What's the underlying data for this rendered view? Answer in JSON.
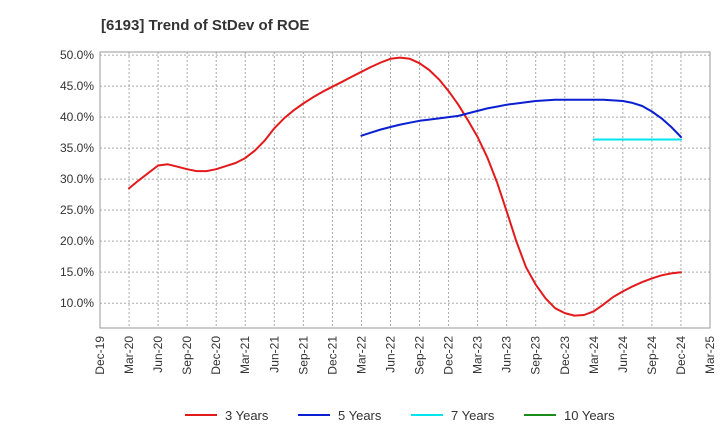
{
  "chart_data": {
    "type": "line",
    "title": "[6193]  Trend of StDev of ROE",
    "xlabel": "",
    "ylabel": "",
    "x_ticks": [
      "Dec-19",
      "Mar-20",
      "Jun-20",
      "Sep-20",
      "Dec-20",
      "Mar-21",
      "Jun-21",
      "Sep-21",
      "Dec-21",
      "Mar-22",
      "Jun-22",
      "Sep-22",
      "Dec-22",
      "Mar-23",
      "Jun-23",
      "Sep-23",
      "Dec-23",
      "Mar-24",
      "Jun-24",
      "Sep-24",
      "Dec-24",
      "Mar-25"
    ],
    "y_ticks": [
      "10.0%",
      "15.0%",
      "20.0%",
      "25.0%",
      "30.0%",
      "35.0%",
      "40.0%",
      "45.0%",
      "50.0%"
    ],
    "ylim": [
      6.0,
      50.5
    ],
    "grid": true,
    "legend_position": "bottom",
    "series": [
      {
        "name": "3 Years",
        "color": "#e31a1c",
        "points": [
          [
            "Mar-20",
            28.5
          ],
          [
            "Apr-20",
            29.8
          ],
          [
            "May-20",
            31.0
          ],
          [
            "Jun-20",
            32.2
          ],
          [
            "Jul-20",
            32.4
          ],
          [
            "Aug-20",
            32.0
          ],
          [
            "Sep-20",
            31.6
          ],
          [
            "Oct-20",
            31.3
          ],
          [
            "Nov-20",
            31.3
          ],
          [
            "Dec-20",
            31.6
          ],
          [
            "Jan-21",
            32.1
          ],
          [
            "Feb-21",
            32.6
          ],
          [
            "Mar-21",
            33.4
          ],
          [
            "Apr-21",
            34.6
          ],
          [
            "May-21",
            36.2
          ],
          [
            "Jun-21",
            38.2
          ],
          [
            "Jul-21",
            39.8
          ],
          [
            "Aug-21",
            41.1
          ],
          [
            "Sep-21",
            42.2
          ],
          [
            "Oct-21",
            43.2
          ],
          [
            "Nov-21",
            44.1
          ],
          [
            "Dec-21",
            44.9
          ],
          [
            "Jan-22",
            45.7
          ],
          [
            "Feb-22",
            46.5
          ],
          [
            "Mar-22",
            47.3
          ],
          [
            "Apr-22",
            48.1
          ],
          [
            "May-22",
            48.8
          ],
          [
            "Jun-22",
            49.4
          ],
          [
            "Jul-22",
            49.6
          ],
          [
            "Aug-22",
            49.4
          ],
          [
            "Sep-22",
            48.7
          ],
          [
            "Oct-22",
            47.6
          ],
          [
            "Nov-22",
            46.1
          ],
          [
            "Dec-22",
            44.2
          ],
          [
            "Jan-23",
            42.0
          ],
          [
            "Feb-23",
            39.5
          ],
          [
            "Mar-23",
            36.8
          ],
          [
            "Apr-23",
            33.5
          ],
          [
            "May-23",
            29.5
          ],
          [
            "Jun-23",
            24.8
          ],
          [
            "Jul-23",
            20.0
          ],
          [
            "Aug-23",
            15.8
          ],
          [
            "Sep-23",
            13.0
          ],
          [
            "Oct-23",
            10.8
          ],
          [
            "Nov-23",
            9.2
          ],
          [
            "Dec-23",
            8.4
          ],
          [
            "Jan-24",
            8.0
          ],
          [
            "Feb-24",
            8.1
          ],
          [
            "Mar-24",
            8.7
          ],
          [
            "Apr-24",
            9.8
          ],
          [
            "May-24",
            11.0
          ],
          [
            "Jun-24",
            11.9
          ],
          [
            "Jul-24",
            12.7
          ],
          [
            "Aug-24",
            13.4
          ],
          [
            "Sep-24",
            14.0
          ],
          [
            "Oct-24",
            14.5
          ],
          [
            "Nov-24",
            14.8
          ],
          [
            "Dec-24",
            15.0
          ]
        ]
      },
      {
        "name": "5 Years",
        "color": "#0a1fd0",
        "points": [
          [
            "Mar-22",
            37.0
          ],
          [
            "Apr-22",
            37.5
          ],
          [
            "May-22",
            38.0
          ],
          [
            "Jun-22",
            38.4
          ],
          [
            "Jul-22",
            38.8
          ],
          [
            "Aug-22",
            39.1
          ],
          [
            "Sep-22",
            39.4
          ],
          [
            "Oct-22",
            39.6
          ],
          [
            "Nov-22",
            39.8
          ],
          [
            "Dec-22",
            40.0
          ],
          [
            "Jan-23",
            40.2
          ],
          [
            "Feb-23",
            40.6
          ],
          [
            "Mar-23",
            41.0
          ],
          [
            "Apr-23",
            41.4
          ],
          [
            "May-23",
            41.7
          ],
          [
            "Jun-23",
            42.0
          ],
          [
            "Jul-23",
            42.2
          ],
          [
            "Aug-23",
            42.4
          ],
          [
            "Sep-23",
            42.6
          ],
          [
            "Oct-23",
            42.7
          ],
          [
            "Nov-23",
            42.8
          ],
          [
            "Dec-23",
            42.8
          ],
          [
            "Jan-24",
            42.8
          ],
          [
            "Feb-24",
            42.8
          ],
          [
            "Mar-24",
            42.8
          ],
          [
            "Apr-24",
            42.8
          ],
          [
            "May-24",
            42.7
          ],
          [
            "Jun-24",
            42.6
          ],
          [
            "Jul-24",
            42.3
          ],
          [
            "Aug-24",
            41.8
          ],
          [
            "Sep-24",
            40.9
          ],
          [
            "Oct-24",
            39.8
          ],
          [
            "Nov-24",
            38.4
          ],
          [
            "Dec-24",
            36.8
          ]
        ]
      },
      {
        "name": "7 Years",
        "color": "#00e5ee",
        "points": [
          [
            "Mar-24",
            36.4
          ],
          [
            "Apr-24",
            36.4
          ],
          [
            "May-24",
            36.4
          ],
          [
            "Jun-24",
            36.4
          ],
          [
            "Jul-24",
            36.4
          ],
          [
            "Aug-24",
            36.4
          ],
          [
            "Sep-24",
            36.4
          ],
          [
            "Oct-24",
            36.4
          ],
          [
            "Nov-24",
            36.4
          ],
          [
            "Dec-24",
            36.4
          ]
        ]
      },
      {
        "name": "10 Years",
        "color": "#1a8c1a",
        "points": []
      }
    ]
  }
}
